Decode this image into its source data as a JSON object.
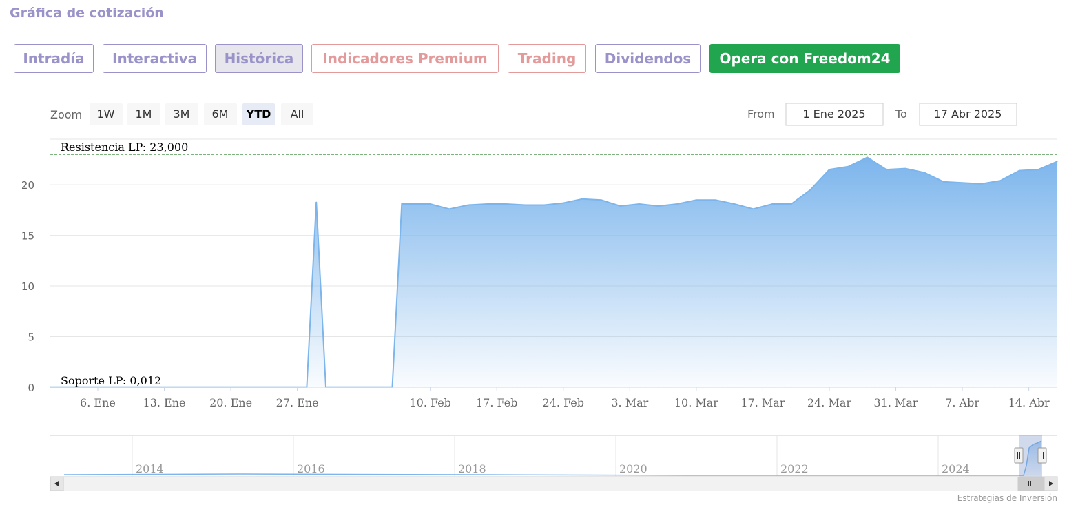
{
  "header": {
    "title": "Gráfica de cotización"
  },
  "tabs": [
    {
      "label": "Intradía",
      "style": "purple"
    },
    {
      "label": "Interactiva",
      "style": "purple"
    },
    {
      "label": "Histórica",
      "style": "active"
    },
    {
      "label": "Indicadores Premium",
      "style": "salmon"
    },
    {
      "label": "Trading",
      "style": "salmon"
    },
    {
      "label": "Dividendos",
      "style": "purple"
    },
    {
      "label": "Opera con Freedom24",
      "style": "green"
    }
  ],
  "zoom": {
    "label": "Zoom",
    "buttons": [
      "1W",
      "1M",
      "3M",
      "6M",
      "YTD",
      "All"
    ],
    "selected": "YTD"
  },
  "range": {
    "from_label": "From",
    "from_value": "1 Ene 2025",
    "to_label": "To",
    "to_value": "17 Abr 2025"
  },
  "colors": {
    "accent": "#9a93c9",
    "salmon": "#e39a9a",
    "green": "#21a54f",
    "series": "#7cb5ec",
    "resistance": "#006400",
    "support": "#8b0000"
  },
  "chart_data": {
    "type": "area",
    "x_ticks": [
      "6. Ene",
      "13. Ene",
      "20. Ene",
      "27. Ene",
      "10. Feb",
      "17. Feb",
      "24. Feb",
      "3. Mar",
      "10. Mar",
      "17. Mar",
      "24. Mar",
      "31. Mar",
      "7. Abr",
      "14. Abr"
    ],
    "y_ticks": [
      "0",
      "5",
      "10",
      "15",
      "20"
    ],
    "ylim": [
      0,
      24.5
    ],
    "grid": true,
    "plot_lines": [
      {
        "label": "Resistencia LP: 23,000",
        "value": 23.0
      },
      {
        "label": "Soporte LP: 0,012",
        "value": 0.012
      }
    ],
    "x": [
      "2025-01-01",
      "2025-01-28",
      "2025-01-29",
      "2025-01-30",
      "2025-02-06",
      "2025-02-07",
      "2025-02-08",
      "2025-02-10",
      "2025-02-12",
      "2025-02-14",
      "2025-02-16",
      "2025-02-18",
      "2025-02-20",
      "2025-02-22",
      "2025-02-24",
      "2025-02-26",
      "2025-02-28",
      "2025-03-02",
      "2025-03-04",
      "2025-03-06",
      "2025-03-08",
      "2025-03-10",
      "2025-03-12",
      "2025-03-14",
      "2025-03-16",
      "2025-03-18",
      "2025-03-20",
      "2025-03-22",
      "2025-03-24",
      "2025-03-26",
      "2025-03-28",
      "2025-03-30",
      "2025-04-01",
      "2025-04-03",
      "2025-04-05",
      "2025-04-07",
      "2025-04-09",
      "2025-04-11",
      "2025-04-13",
      "2025-04-15",
      "2025-04-17"
    ],
    "values": [
      0.012,
      0.012,
      18.3,
      0.012,
      0.012,
      18.1,
      18.1,
      18.1,
      17.6,
      18.0,
      18.1,
      18.1,
      18.0,
      18.0,
      18.2,
      18.6,
      18.5,
      17.9,
      18.1,
      17.9,
      18.1,
      18.5,
      18.5,
      18.1,
      17.6,
      18.1,
      18.1,
      19.5,
      21.5,
      21.8,
      22.7,
      21.5,
      21.6,
      21.2,
      20.3,
      20.2,
      20.1,
      20.4,
      21.4,
      21.5,
      22.3
    ],
    "navigator": {
      "x_ticks": [
        "2014",
        "2016",
        "2018",
        "2020",
        "2022",
        "2024"
      ]
    },
    "credits": "Estrategias de Inversión"
  }
}
